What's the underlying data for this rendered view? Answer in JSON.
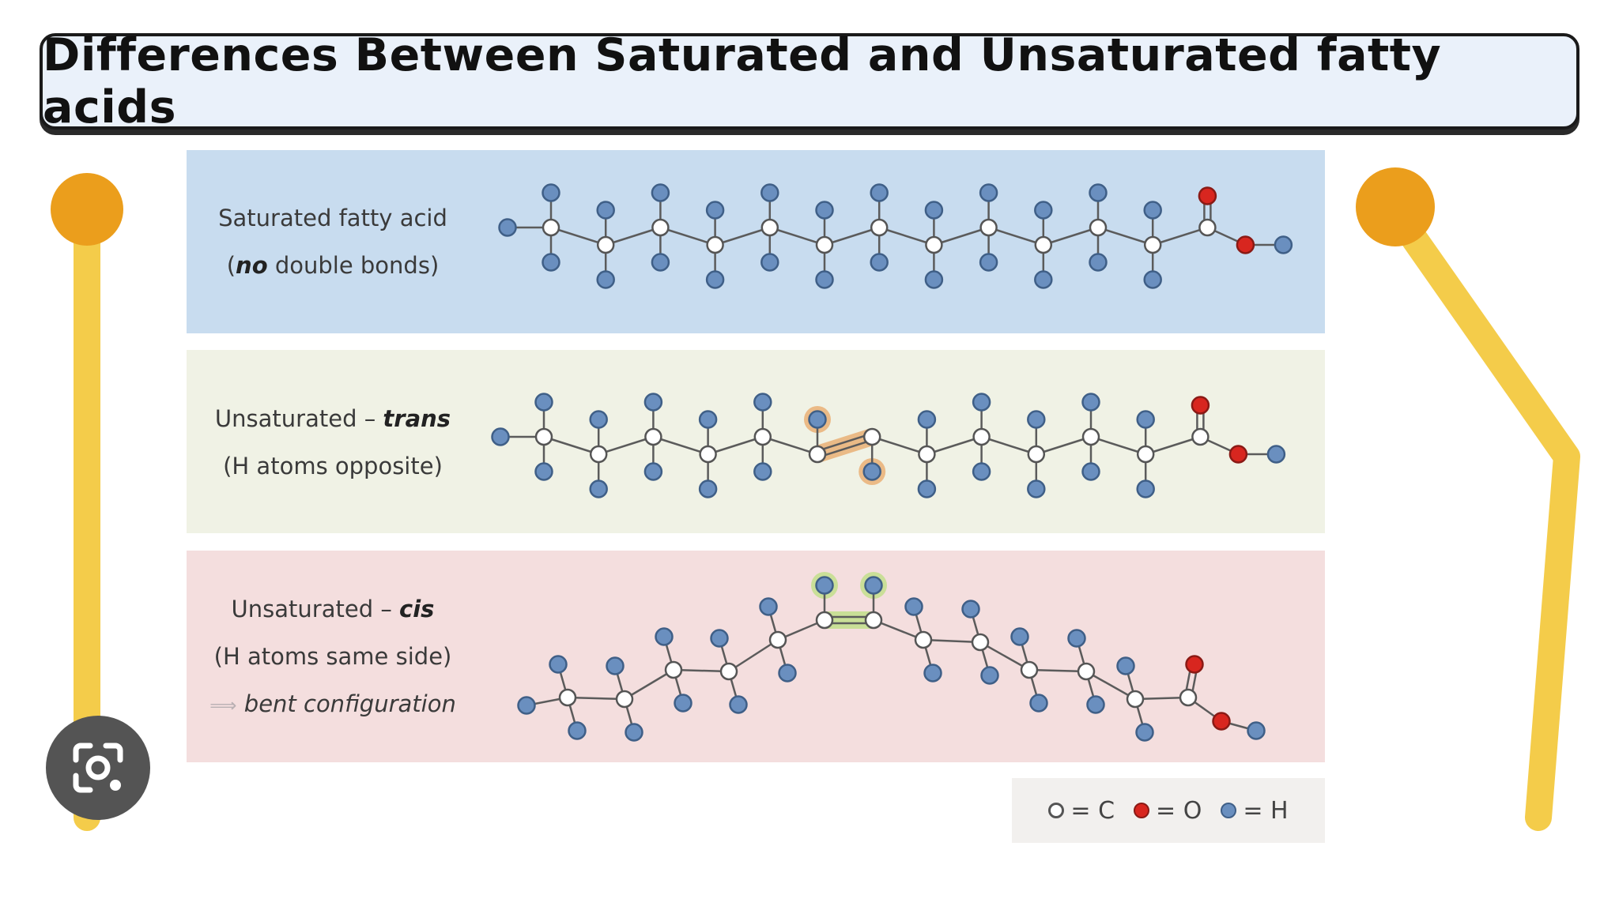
{
  "title": "Differences Between Saturated and Unsaturated fatty acids",
  "panels": [
    {
      "id": "saturated",
      "bg": "#c8dcef",
      "line1": "Saturated fatty acid",
      "line2_prefix": "(",
      "line2_emph": "no",
      "line2_suffix": " double bonds)"
    },
    {
      "id": "trans",
      "bg": "#f0f2e5",
      "line1_prefix": "Unsaturated – ",
      "line1_emph": "trans",
      "line2": "(H atoms opposite)",
      "highlight": "#e8a35e"
    },
    {
      "id": "cis",
      "bg": "#f4dede",
      "line1_prefix": "Unsaturated – ",
      "line1_emph": "cis",
      "line2": "(H atoms same side)",
      "line3_arrow": "⟹",
      "line3": "bent configuration",
      "highlight": "#b8e07a"
    }
  ],
  "legend": {
    "items": [
      {
        "symbol": "carbon-dot",
        "label": "= C",
        "color": "#ffffff"
      },
      {
        "symbol": "oxygen-dot",
        "label": "= O",
        "color": "#d8261f"
      },
      {
        "symbol": "hydrogen-dot",
        "label": "= H",
        "color": "#6a8fbf"
      }
    ]
  },
  "colors": {
    "carbon_fill": "#ffffff",
    "oxygen": "#d8261f",
    "hydrogen": "#6a8fbf",
    "bond": "#5b5b5b",
    "accent_bar": "#f4cc4a",
    "accent_dot": "#eb9e1c",
    "lens_bg": "#545454"
  },
  "icons": {
    "lens": "camera-lens-icon"
  }
}
